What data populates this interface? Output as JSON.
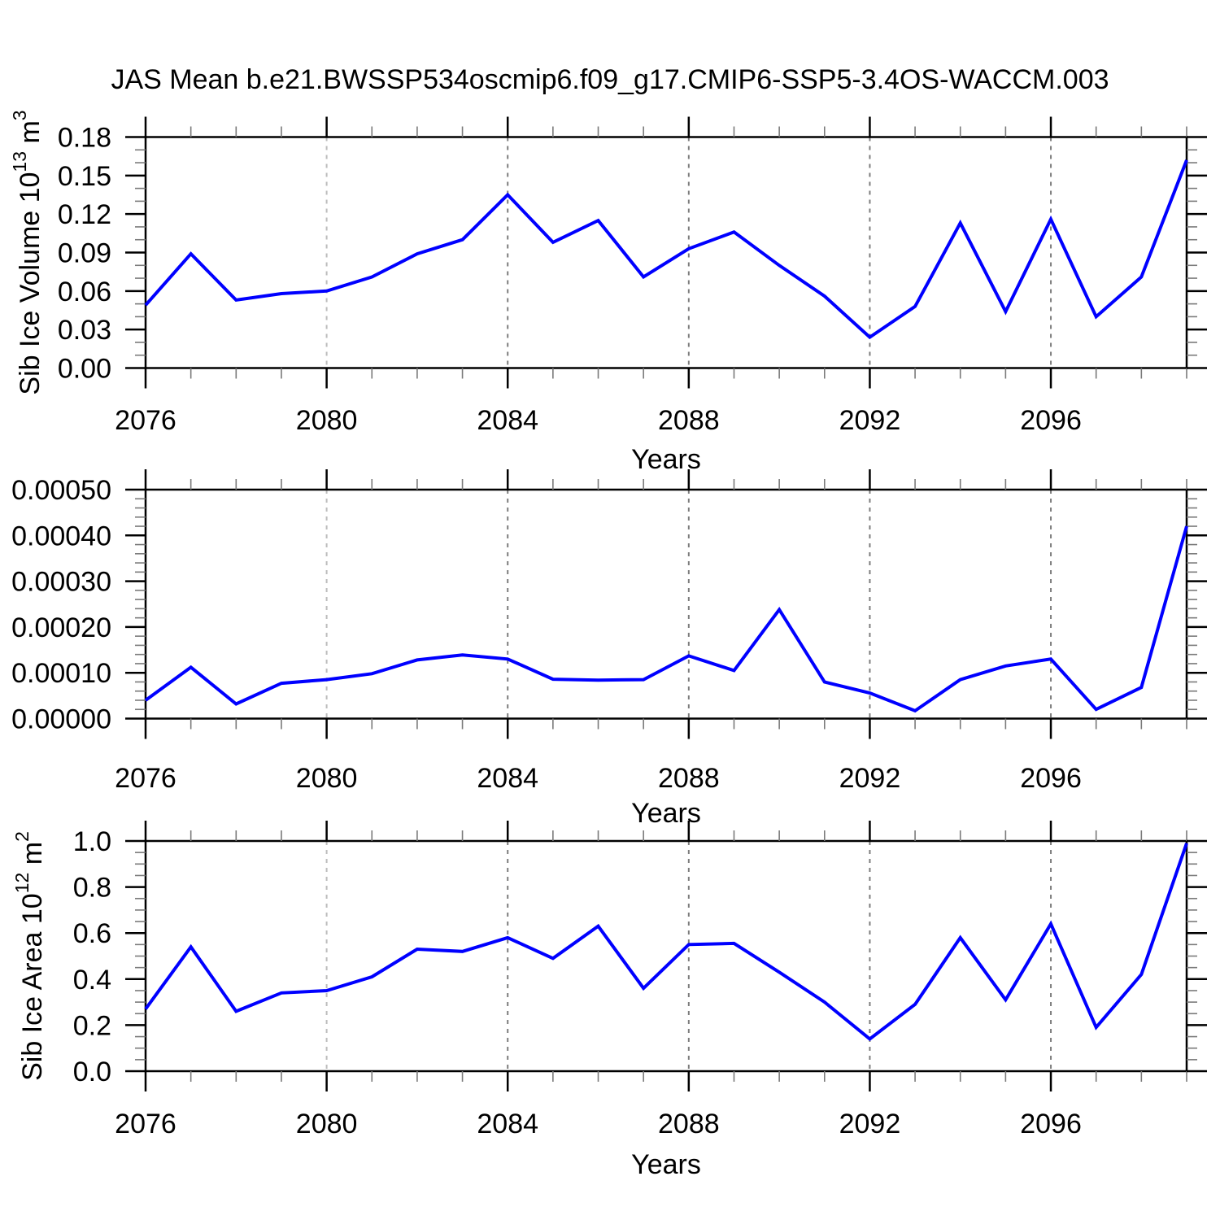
{
  "title": "JAS Mean b.e21.BWSSP534oscmip6.f09_g17.CMIP6-SSP5-3.4OS-WACCM.003",
  "chart_data": [
    {
      "type": "line",
      "name": "sib-ice-volume",
      "ylabel_text": "Sib Ice Volume 10^13 m^3",
      "ylabel_parts": [
        {
          "text": "Sib Ice Volume 10"
        },
        {
          "text": "13",
          "sup": true
        },
        {
          "text": " m"
        },
        {
          "text": "3",
          "sup": true
        }
      ],
      "xlabel": "Years",
      "xlim": [
        2076,
        2099
      ],
      "ylim": [
        0,
        0.18
      ],
      "ytick_major": 0.03,
      "ytick_minor": 0.01,
      "y_decimals": 2,
      "ytick_labels": [
        "0.00",
        "0.03",
        "0.06",
        "0.09",
        "0.12",
        "0.15",
        "0.18"
      ],
      "xtick_major_years": [
        2076,
        2080,
        2084,
        2088,
        2092,
        2096
      ],
      "xtick_minor_step": 1,
      "grid_years": [
        2080,
        2084,
        2088,
        2092,
        2096
      ],
      "grid_colors": {
        "2080": "#bcbcbc",
        "2084": "#7d7d7d",
        "2088": "#7d7d7d",
        "2092": "#7d7d7d",
        "2096": "#7d7d7d"
      },
      "line_color": "#0000ff",
      "x": [
        2076,
        2077,
        2078,
        2079,
        2080,
        2081,
        2082,
        2083,
        2084,
        2085,
        2086,
        2087,
        2088,
        2089,
        2090,
        2091,
        2092,
        2093,
        2094,
        2095,
        2096,
        2097,
        2098,
        2099
      ],
      "values": [
        0.049,
        0.089,
        0.053,
        0.058,
        0.06,
        0.071,
        0.089,
        0.1,
        0.135,
        0.098,
        0.115,
        0.071,
        0.093,
        0.106,
        0.08,
        0.056,
        0.024,
        0.048,
        0.113,
        0.044,
        0.116,
        0.04,
        0.071,
        0.162
      ]
    },
    {
      "type": "line",
      "name": "sib-ice-middle-series",
      "ylabel_text": "",
      "ylabel_parts": [],
      "xlabel": "Years",
      "xlim": [
        2076,
        2099
      ],
      "ylim": [
        0,
        0.0005
      ],
      "ytick_major": 0.0001,
      "ytick_minor": 2e-05,
      "y_decimals": 5,
      "ytick_labels": [
        "0.00000",
        "0.00010",
        "0.00020",
        "0.00030",
        "0.00040",
        "0.00050"
      ],
      "xtick_major_years": [
        2076,
        2080,
        2084,
        2088,
        2092,
        2096
      ],
      "xtick_minor_step": 1,
      "grid_years": [
        2080,
        2084,
        2088,
        2092,
        2096
      ],
      "grid_colors": {
        "2080": "#bcbcbc",
        "2084": "#7d7d7d",
        "2088": "#7d7d7d",
        "2092": "#7d7d7d",
        "2096": "#7d7d7d"
      },
      "line_color": "#0000ff",
      "x": [
        2076,
        2077,
        2078,
        2079,
        2080,
        2081,
        2082,
        2083,
        2084,
        2085,
        2086,
        2087,
        2088,
        2089,
        2090,
        2091,
        2092,
        2093,
        2094,
        2095,
        2096,
        2097,
        2098,
        2099
      ],
      "values": [
        4e-05,
        0.000112,
        3.2e-05,
        7.7e-05,
        8.5e-05,
        9.8e-05,
        0.000128,
        0.000139,
        0.00013,
        8.6e-05,
        8.4e-05,
        8.5e-05,
        0.000137,
        0.000105,
        0.000238,
        8e-05,
        5.6e-05,
        1.7e-05,
        8.5e-05,
        0.000115,
        0.00013,
        2e-05,
        6.8e-05,
        0.00042
      ]
    },
    {
      "type": "line",
      "name": "sib-ice-area",
      "ylabel_text": "Sib Ice Area 10^12 m^2",
      "ylabel_parts": [
        {
          "text": "Sib Ice Area 10"
        },
        {
          "text": "12",
          "sup": true
        },
        {
          "text": " m"
        },
        {
          "text": "2",
          "sup": true
        }
      ],
      "xlabel": "Years",
      "xlim": [
        2076,
        2099
      ],
      "ylim": [
        0,
        1.0
      ],
      "ytick_major": 0.2,
      "ytick_minor": 0.05,
      "y_decimals": 1,
      "ytick_labels": [
        "0.0",
        "0.2",
        "0.4",
        "0.6",
        "0.8",
        "1.0"
      ],
      "xtick_major_years": [
        2076,
        2080,
        2084,
        2088,
        2092,
        2096
      ],
      "xtick_minor_step": 1,
      "grid_years": [
        2080,
        2084,
        2088,
        2092,
        2096
      ],
      "grid_colors": {
        "2080": "#bcbcbc",
        "2084": "#7d7d7d",
        "2088": "#7d7d7d",
        "2092": "#7d7d7d",
        "2096": "#7d7d7d"
      },
      "line_color": "#0000ff",
      "x": [
        2076,
        2077,
        2078,
        2079,
        2080,
        2081,
        2082,
        2083,
        2084,
        2085,
        2086,
        2087,
        2088,
        2089,
        2090,
        2091,
        2092,
        2093,
        2094,
        2095,
        2096,
        2097,
        2098,
        2099
      ],
      "values": [
        0.27,
        0.54,
        0.26,
        0.34,
        0.35,
        0.41,
        0.53,
        0.52,
        0.58,
        0.49,
        0.63,
        0.36,
        0.55,
        0.555,
        0.43,
        0.3,
        0.14,
        0.29,
        0.58,
        0.31,
        0.64,
        0.19,
        0.42,
        0.99
      ]
    }
  ]
}
